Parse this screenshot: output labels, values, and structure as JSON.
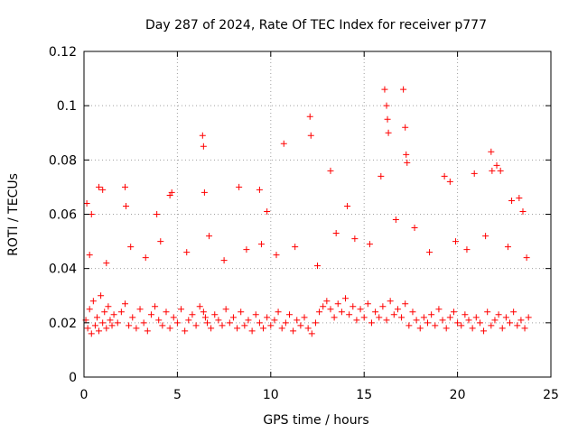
{
  "chart_data": {
    "type": "scatter",
    "title": "Day 287 of 2024, Rate Of TEC Index for receiver p777",
    "xlabel": "GPS time / hours",
    "ylabel": "ROTI / TECUs",
    "xlim": [
      0,
      25
    ],
    "ylim": [
      0,
      0.12
    ],
    "x_ticks": [
      0,
      5,
      10,
      15,
      20,
      25
    ],
    "x_tick_labels": [
      "0",
      "5",
      "10",
      "15",
      "20",
      "25"
    ],
    "y_ticks": [
      0,
      0.02,
      0.04,
      0.06,
      0.08,
      0.1,
      0.12
    ],
    "y_tick_labels": [
      "0",
      "0.02",
      "0.04",
      "0.06",
      "0.08",
      "0.1",
      "0.12"
    ],
    "grid": true,
    "marker": "plus",
    "series_color": "#ff0000",
    "series": [
      {
        "name": "ROTI",
        "x": [
          0.1,
          0.2,
          0.3,
          0.4,
          0.5,
          0.6,
          0.7,
          0.8,
          0.9,
          1.0,
          1.1,
          1.2,
          1.3,
          1.4,
          1.5,
          1.6,
          1.8,
          2.0,
          2.2,
          2.4,
          2.6,
          2.8,
          3.0,
          3.2,
          3.4,
          3.6,
          3.8,
          4.0,
          4.2,
          4.4,
          4.6,
          4.8,
          5.0,
          5.2,
          5.4,
          5.6,
          5.8,
          6.0,
          6.2,
          6.4,
          6.5,
          6.6,
          6.8,
          7.0,
          7.2,
          7.4,
          7.6,
          7.8,
          8.0,
          8.2,
          8.4,
          8.6,
          8.8,
          9.0,
          9.2,
          9.4,
          9.6,
          9.8,
          10.0,
          10.2,
          10.4,
          10.6,
          10.8,
          11.0,
          11.2,
          11.4,
          11.6,
          11.8,
          12.0,
          12.2,
          12.4,
          12.6,
          12.8,
          13.0,
          13.2,
          13.4,
          13.6,
          13.8,
          14.0,
          14.2,
          14.4,
          14.6,
          14.8,
          15.0,
          15.2,
          15.4,
          15.6,
          15.8,
          16.0,
          16.2,
          16.4,
          16.6,
          16.8,
          17.0,
          17.2,
          17.4,
          17.6,
          17.8,
          18.0,
          18.2,
          18.4,
          18.6,
          18.8,
          19.0,
          19.2,
          19.4,
          19.6,
          19.8,
          20.0,
          20.2,
          20.4,
          20.6,
          20.8,
          21.0,
          21.2,
          21.4,
          21.6,
          21.8,
          22.0,
          22.2,
          22.4,
          22.6,
          22.8,
          23.0,
          23.2,
          23.4,
          23.6,
          23.8,
          0.15,
          0.4,
          0.8,
          1.0,
          2.2,
          2.25,
          3.9,
          4.6,
          4.7,
          6.35,
          6.4,
          6.45,
          8.3,
          9.4,
          9.8,
          10.7,
          12.1,
          12.15,
          13.2,
          14.1,
          15.9,
          16.1,
          16.2,
          16.25,
          16.3,
          17.1,
          17.2,
          17.25,
          17.3,
          19.3,
          19.6,
          20.9,
          21.8,
          21.85,
          22.1,
          22.3,
          22.9,
          23.3,
          23.5,
          0.3,
          1.2,
          2.5,
          3.3,
          4.1,
          5.5,
          6.7,
          7.5,
          8.7,
          9.5,
          10.3,
          11.3,
          12.5,
          13.5,
          14.5,
          15.3,
          16.7,
          17.7,
          18.5,
          19.9,
          20.5,
          21.5,
          22.7,
          23.7
        ],
        "y": [
          0.021,
          0.018,
          0.025,
          0.016,
          0.028,
          0.019,
          0.022,
          0.017,
          0.03,
          0.02,
          0.024,
          0.018,
          0.026,
          0.021,
          0.019,
          0.023,
          0.02,
          0.024,
          0.027,
          0.019,
          0.022,
          0.018,
          0.025,
          0.02,
          0.017,
          0.023,
          0.026,
          0.021,
          0.019,
          0.024,
          0.018,
          0.022,
          0.02,
          0.025,
          0.017,
          0.021,
          0.023,
          0.019,
          0.026,
          0.024,
          0.022,
          0.02,
          0.018,
          0.023,
          0.021,
          0.019,
          0.025,
          0.02,
          0.022,
          0.018,
          0.024,
          0.019,
          0.021,
          0.017,
          0.023,
          0.02,
          0.018,
          0.022,
          0.019,
          0.021,
          0.024,
          0.018,
          0.02,
          0.023,
          0.017,
          0.021,
          0.019,
          0.022,
          0.018,
          0.016,
          0.02,
          0.024,
          0.026,
          0.028,
          0.025,
          0.022,
          0.027,
          0.024,
          0.029,
          0.023,
          0.026,
          0.021,
          0.025,
          0.022,
          0.027,
          0.02,
          0.024,
          0.022,
          0.026,
          0.021,
          0.028,
          0.023,
          0.025,
          0.022,
          0.027,
          0.019,
          0.024,
          0.021,
          0.018,
          0.022,
          0.02,
          0.023,
          0.019,
          0.025,
          0.021,
          0.018,
          0.022,
          0.024,
          0.02,
          0.019,
          0.023,
          0.021,
          0.018,
          0.022,
          0.02,
          0.017,
          0.024,
          0.019,
          0.021,
          0.023,
          0.018,
          0.022,
          0.02,
          0.024,
          0.019,
          0.021,
          0.018,
          0.022,
          0.064,
          0.06,
          0.07,
          0.069,
          0.07,
          0.063,
          0.06,
          0.067,
          0.068,
          0.089,
          0.085,
          0.068,
          0.07,
          0.069,
          0.061,
          0.086,
          0.096,
          0.089,
          0.076,
          0.063,
          0.074,
          0.106,
          0.1,
          0.095,
          0.09,
          0.106,
          0.092,
          0.082,
          0.079,
          0.074,
          0.072,
          0.075,
          0.083,
          0.076,
          0.078,
          0.076,
          0.065,
          0.066,
          0.061,
          0.045,
          0.042,
          0.048,
          0.044,
          0.05,
          0.046,
          0.052,
          0.043,
          0.047,
          0.049,
          0.045,
          0.048,
          0.041,
          0.053,
          0.051,
          0.049,
          0.058,
          0.055,
          0.046,
          0.05,
          0.047,
          0.052,
          0.048,
          0.044
        ]
      }
    ]
  }
}
